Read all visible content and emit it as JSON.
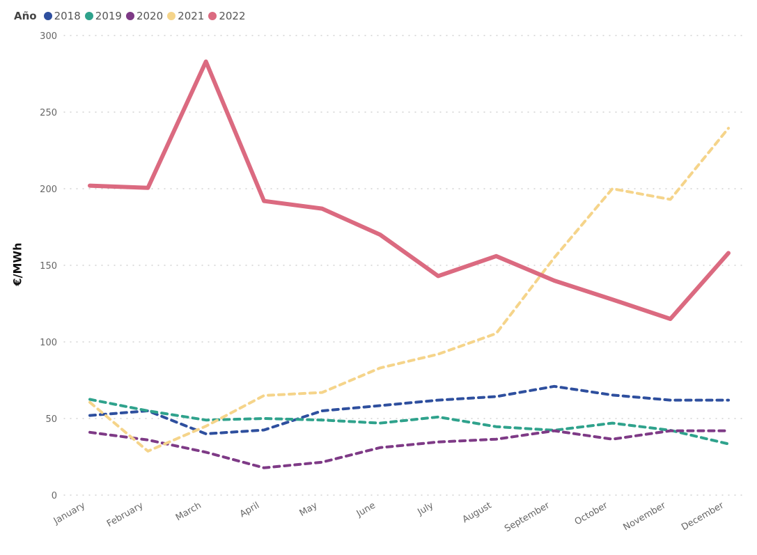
{
  "chart_data": {
    "type": "line",
    "title": "",
    "xlabel": "",
    "ylabel": "€/MWh",
    "ylim": [
      0,
      300
    ],
    "yticks": [
      "0",
      "50",
      "100",
      "150",
      "200",
      "250",
      "300"
    ],
    "ytick_values": [
      0,
      50,
      100,
      150,
      200,
      250,
      300
    ],
    "grid": true,
    "legend_title": "Año",
    "legend_position": "top-left",
    "categories": [
      "January",
      "February",
      "March",
      "April",
      "May",
      "June",
      "July",
      "August",
      "September",
      "October",
      "November",
      "December"
    ],
    "series": [
      {
        "name": "2018",
        "color": "#2E4F9E",
        "style": "dashed",
        "values": [
          52,
          55,
          40,
          42.5,
          55,
          58.4,
          62,
          64.3,
          71,
          65.3,
          62,
          62
        ]
      },
      {
        "name": "2019",
        "color": "#2FA28C",
        "style": "dashed",
        "values": [
          62.5,
          55,
          49,
          50,
          49,
          47,
          51,
          44.7,
          42.3,
          47,
          42.3,
          33.4
        ]
      },
      {
        "name": "2020",
        "color": "#7E3A86",
        "style": "dashed",
        "values": [
          41,
          36,
          28,
          17.8,
          21.5,
          31,
          34.7,
          36.5,
          42,
          36.5,
          42,
          42
        ]
      },
      {
        "name": "2021",
        "color": "#F5D48A",
        "style": "dashed",
        "values": [
          60.6,
          28.7,
          45,
          65,
          67,
          83,
          92,
          105.5,
          155,
          200,
          193,
          239.5
        ]
      },
      {
        "name": "2022",
        "color": "#DB6A80",
        "style": "solid",
        "values": [
          202,
          200.6,
          283,
          192,
          187,
          170,
          143,
          156,
          140,
          127.7,
          115,
          158
        ]
      }
    ]
  }
}
